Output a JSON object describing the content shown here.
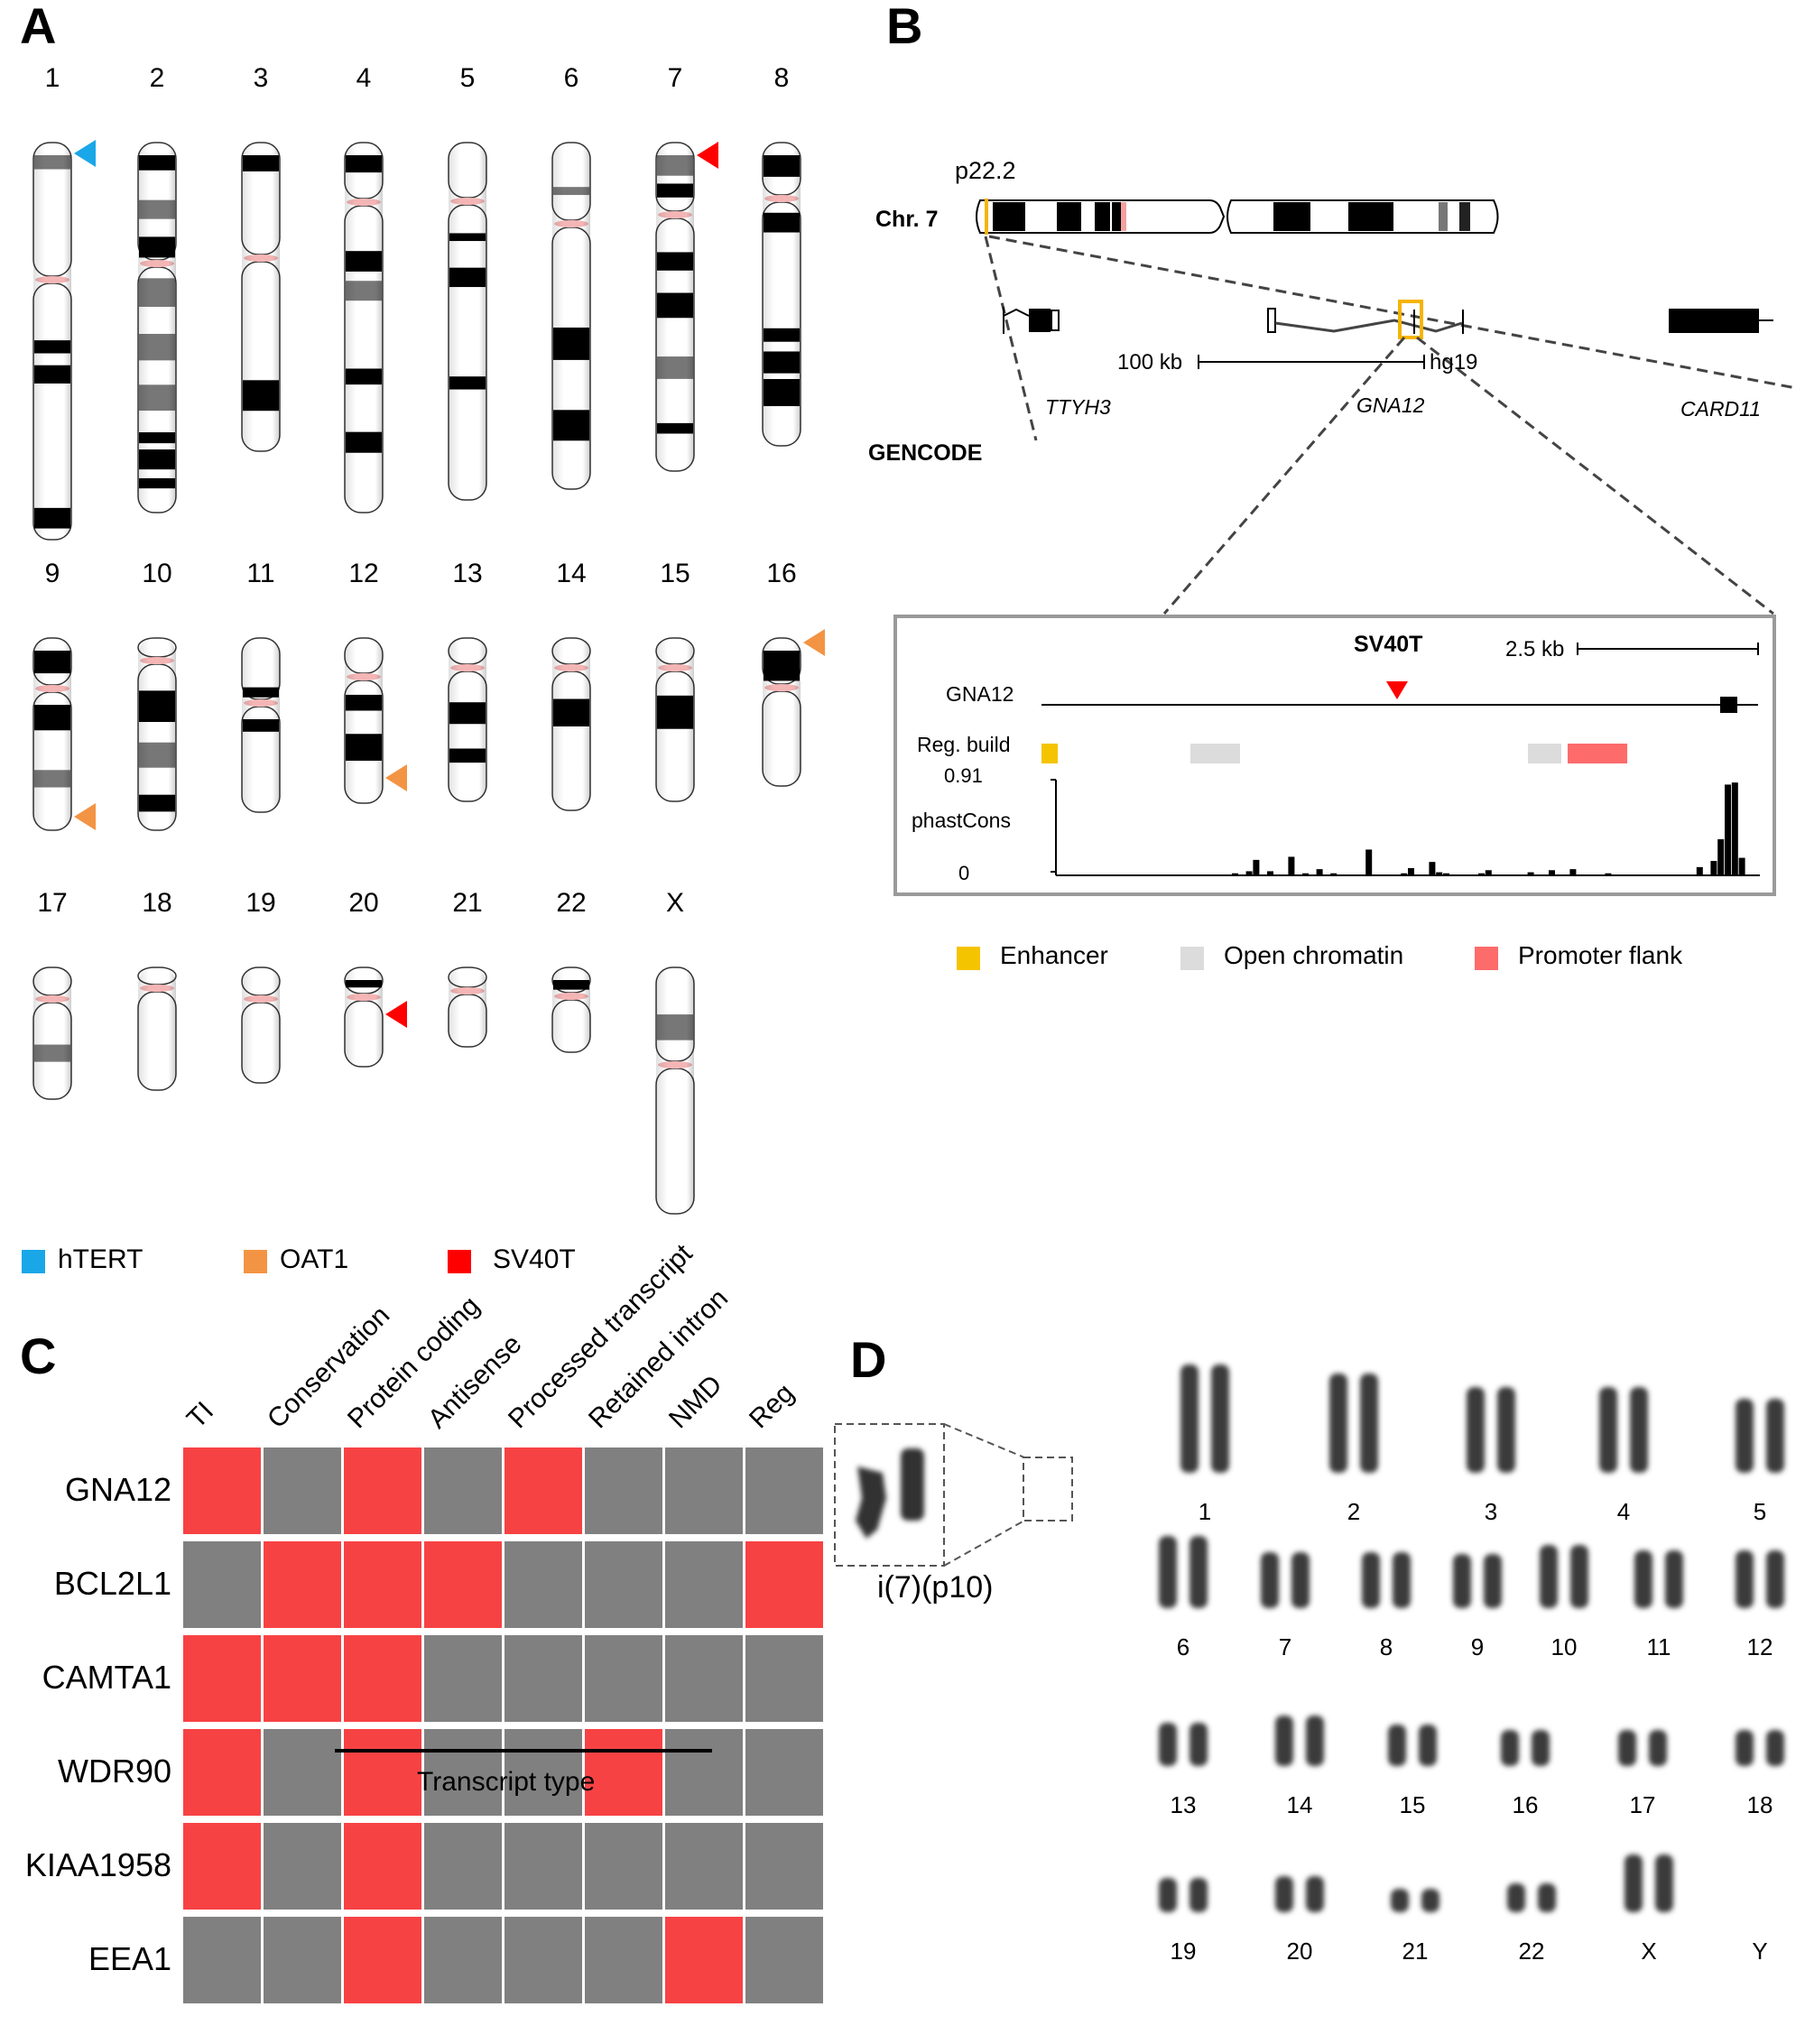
{
  "panels": {
    "A": {
      "letter": "A",
      "rows": [
        [
          "1",
          "2",
          "3",
          "4",
          "5",
          "6",
          "7",
          "8"
        ],
        [
          "9",
          "10",
          "11",
          "12",
          "13",
          "14",
          "15",
          "16"
        ],
        [
          "17",
          "18",
          "19",
          "20",
          "21",
          "22",
          "X"
        ]
      ],
      "markers": [
        {
          "chromosome": "1",
          "type": "hTERT",
          "color": "#1aa7e8"
        },
        {
          "chromosome": "7",
          "type": "SV40T",
          "color": "#ff0000"
        },
        {
          "chromosome": "9",
          "type": "OAT1",
          "color": "#f39444"
        },
        {
          "chromosome": "12",
          "type": "OAT1",
          "color": "#f39444"
        },
        {
          "chromosome": "16",
          "type": "OAT1",
          "color": "#f39444"
        },
        {
          "chromosome": "20",
          "type": "SV40T",
          "color": "#ff0000"
        }
      ],
      "legend": [
        {
          "label": "hTERT",
          "color": "#1aa7e8"
        },
        {
          "label": "OAT1",
          "color": "#f39444"
        },
        {
          "label": "SV40T",
          "color": "#ff0000"
        }
      ]
    },
    "B": {
      "letter": "B",
      "band_label": "p22.2",
      "chromosome_label": "Chr. 7",
      "scale_bar_1": "100 kb",
      "assembly": "hg19",
      "track_label": "GENCODE",
      "genes": [
        "TTYH3",
        "GNA12",
        "CARD11"
      ],
      "inset": {
        "insertion_label": "SV40T",
        "scale_bar": "2.5 kb",
        "gene_track": "GNA12",
        "reg_track": "Reg. build",
        "cons_track": "phastCons",
        "y_max": "0.91",
        "y_min": "0"
      },
      "legend": [
        {
          "label": "Enhancer",
          "color": "#f5c400"
        },
        {
          "label": "Open chromatin",
          "color": "#dcdcdc"
        },
        {
          "label": "Promoter flank",
          "color": "#fd6b6b"
        }
      ]
    },
    "C": {
      "letter": "C",
      "footer": "Transcript type"
    },
    "D": {
      "letter": "D",
      "inset_label": "i(7)(p10)",
      "rows": [
        [
          "1",
          "2",
          "3",
          "4",
          "5"
        ],
        [
          "6",
          "7",
          "8",
          "9",
          "10",
          "11",
          "12"
        ],
        [
          "13",
          "14",
          "15",
          "16",
          "17",
          "18"
        ],
        [
          "19",
          "20",
          "21",
          "22",
          "X",
          "Y"
        ]
      ]
    }
  },
  "chart_data": [
    {
      "type": "heatmap",
      "title": "Panel C",
      "columns": [
        "TI",
        "Conservation",
        "Protein coding",
        "Antisense",
        "Processed transcript",
        "Retained intron",
        "NMD",
        "Reg"
      ],
      "rows": [
        "GNA12",
        "BCL2L1",
        "CAMTA1",
        "WDR90",
        "KIAA1958",
        "EEA1"
      ],
      "values": [
        [
          1,
          0,
          1,
          0,
          1,
          0,
          0,
          0
        ],
        [
          0,
          1,
          1,
          1,
          0,
          0,
          0,
          1
        ],
        [
          1,
          1,
          1,
          0,
          0,
          0,
          0,
          0
        ],
        [
          1,
          0,
          1,
          0,
          0,
          1,
          0,
          0
        ],
        [
          1,
          0,
          1,
          0,
          0,
          0,
          0,
          0
        ],
        [
          0,
          0,
          1,
          0,
          0,
          0,
          1,
          0
        ]
      ],
      "colors": {
        "1": "#f74244",
        "0": "#808080"
      },
      "group_annotation": {
        "label": "Transcript type",
        "span": [
          "Protein coding",
          "NMD"
        ]
      }
    },
    {
      "type": "bar",
      "title": "phastCons (GNA12 SV40T insertion region)",
      "ylabel": "phastCons",
      "ylim": [
        0,
        0.91
      ],
      "x_relative": [
        0.25,
        0.27,
        0.28,
        0.3,
        0.33,
        0.35,
        0.37,
        0.39,
        0.44,
        0.49,
        0.5,
        0.53,
        0.54,
        0.55,
        0.6,
        0.61,
        0.67,
        0.7,
        0.73,
        0.78,
        0.91,
        0.93,
        0.94,
        0.95,
        0.96,
        0.97
      ],
      "values": [
        0.02,
        0.04,
        0.15,
        0.04,
        0.18,
        0.02,
        0.06,
        0.02,
        0.25,
        0.02,
        0.07,
        0.13,
        0.03,
        0.02,
        0.02,
        0.05,
        0.03,
        0.05,
        0.06,
        0.02,
        0.08,
        0.14,
        0.35,
        0.88,
        0.9,
        0.17
      ]
    }
  ]
}
